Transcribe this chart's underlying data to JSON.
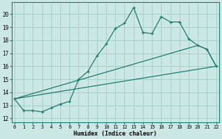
{
  "xlabel": "Humidex (Indice chaleur)",
  "ylabel": "",
  "bg_color": "#cce8e4",
  "grid_color": "#a0ccc8",
  "line_color": "#1a7a6e",
  "spine_color": "#1a7a6e",
  "x_ticks": [
    0,
    1,
    2,
    3,
    4,
    5,
    6,
    7,
    8,
    9,
    10,
    11,
    12,
    13,
    14,
    15,
    16,
    17,
    18,
    19,
    20,
    21,
    22
  ],
  "y_ticks": [
    12,
    13,
    14,
    15,
    16,
    17,
    18,
    19,
    20
  ],
  "xlim": [
    -0.3,
    22.3
  ],
  "ylim": [
    11.7,
    20.9
  ],
  "series1_x": [
    0,
    1,
    2,
    3,
    4,
    5,
    6,
    7,
    8,
    9,
    10,
    11,
    12,
    13,
    14,
    15,
    16,
    17,
    18,
    19,
    20,
    21,
    22
  ],
  "series1_y": [
    13.5,
    12.6,
    12.6,
    12.5,
    12.8,
    13.1,
    13.3,
    15.0,
    15.6,
    16.8,
    17.7,
    18.9,
    19.3,
    20.5,
    18.6,
    18.5,
    19.8,
    19.4,
    19.4,
    18.1,
    17.6,
    17.3,
    16.0
  ],
  "series2_x": [
    0,
    20,
    21,
    22
  ],
  "series2_y": [
    13.5,
    17.6,
    17.3,
    16.0
  ],
  "series3_x": [
    0,
    22
  ],
  "series3_y": [
    13.5,
    16.0
  ]
}
